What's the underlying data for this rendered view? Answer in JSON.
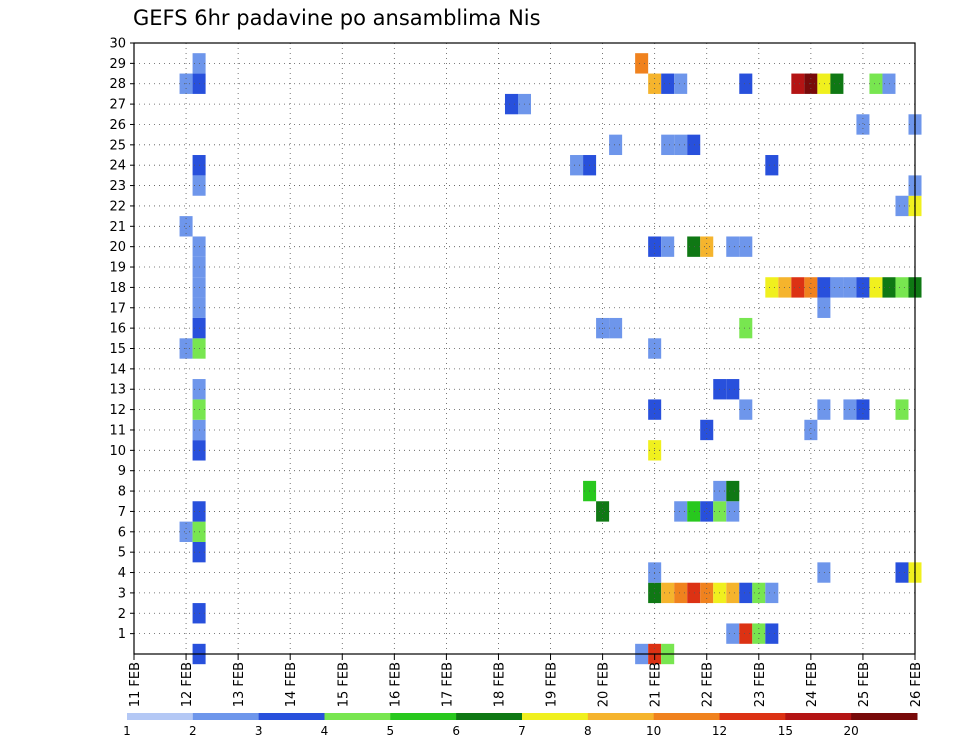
{
  "chart_data": {
    "type": "heatmap",
    "title": "GEFS 6hr padavine po ansamblima Nis",
    "x_ticks": [
      "11 FEB",
      "12 FEB",
      "13 FEB",
      "14 FEB",
      "15 FEB",
      "16 FEB",
      "17 FEB",
      "18 FEB",
      "19 FEB",
      "20 FEB",
      "21 FEB",
      "22 FEB",
      "23 FEB",
      "24 FEB",
      "25 FEB",
      "26 FEB"
    ],
    "y_ticks": [
      "1",
      "2",
      "3",
      "4",
      "5",
      "6",
      "7",
      "8",
      "9",
      "10",
      "11",
      "12",
      "13",
      "14",
      "15",
      "16",
      "17",
      "18",
      "19",
      "20",
      "21",
      "22",
      "23",
      "24",
      "25",
      "26",
      "27",
      "28",
      "29",
      "30"
    ],
    "xlim": [
      "11 FEB 00Z",
      "26 FEB 00Z"
    ],
    "ylim": [
      0,
      30
    ],
    "grid": true,
    "colorbar": {
      "labels": [
        "1",
        "2",
        "3",
        "4",
        "5",
        "6",
        "7",
        "8",
        "10",
        "12",
        "15",
        "20"
      ],
      "colors": [
        "#b4c8f5",
        "#6e96eb",
        "#2850dc",
        "#78e650",
        "#28c81e",
        "#0f7814",
        "#f0f01e",
        "#f5b42d",
        "#f0821e",
        "#dc3214",
        "#b41414",
        "#780a0a"
      ]
    },
    "points": [
      {
        "m": 0,
        "d": 12.25,
        "v": 2
      },
      {
        "m": 0,
        "d": 20.75,
        "v": 1
      },
      {
        "m": 0,
        "d": 21.0,
        "v": 9
      },
      {
        "m": 0,
        "d": 21.25,
        "v": 3
      },
      {
        "m": 1,
        "d": 22.5,
        "v": 1
      },
      {
        "m": 1,
        "d": 22.75,
        "v": 9
      },
      {
        "m": 1,
        "d": 23.0,
        "v": 3
      },
      {
        "m": 1,
        "d": 23.25,
        "v": 2
      },
      {
        "m": 2,
        "d": 12.25,
        "v": 2
      },
      {
        "m": 3,
        "d": 21.0,
        "v": 5
      },
      {
        "m": 3,
        "d": 21.25,
        "v": 7
      },
      {
        "m": 3,
        "d": 21.5,
        "v": 8
      },
      {
        "m": 3,
        "d": 21.75,
        "v": 9
      },
      {
        "m": 3,
        "d": 22.0,
        "v": 8
      },
      {
        "m": 3,
        "d": 22.25,
        "v": 6
      },
      {
        "m": 3,
        "d": 22.5,
        "v": 7
      },
      {
        "m": 3,
        "d": 22.75,
        "v": 2
      },
      {
        "m": 3,
        "d": 23.0,
        "v": 3
      },
      {
        "m": 3,
        "d": 23.25,
        "v": 1
      },
      {
        "m": 4,
        "d": 21.0,
        "v": 1
      },
      {
        "m": 4,
        "d": 24.25,
        "v": 1
      },
      {
        "m": 4,
        "d": 25.75,
        "v": 2
      },
      {
        "m": 4,
        "d": 26.0,
        "v": 6
      },
      {
        "m": 5,
        "d": 12.25,
        "v": 2
      },
      {
        "m": 6,
        "d": 12.0,
        "v": 1
      },
      {
        "m": 6,
        "d": 12.25,
        "v": 3
      },
      {
        "m": 7,
        "d": 12.25,
        "v": 2
      },
      {
        "m": 7,
        "d": 20.0,
        "v": 5
      },
      {
        "m": 7,
        "d": 21.5,
        "v": 1
      },
      {
        "m": 7,
        "d": 21.75,
        "v": 4
      },
      {
        "m": 7,
        "d": 22.0,
        "v": 2
      },
      {
        "m": 7,
        "d": 22.25,
        "v": 3
      },
      {
        "m": 7,
        "d": 22.5,
        "v": 1
      },
      {
        "m": 8,
        "d": 19.75,
        "v": 4
      },
      {
        "m": 8,
        "d": 22.25,
        "v": 1
      },
      {
        "m": 8,
        "d": 22.5,
        "v": 5
      },
      {
        "m": 10,
        "d": 12.25,
        "v": 2
      },
      {
        "m": 10,
        "d": 21.0,
        "v": 6
      },
      {
        "m": 11,
        "d": 12.25,
        "v": 1
      },
      {
        "m": 11,
        "d": 22.0,
        "v": 2
      },
      {
        "m": 11,
        "d": 24.0,
        "v": 1
      },
      {
        "m": 12,
        "d": 12.25,
        "v": 3
      },
      {
        "m": 12,
        "d": 21.0,
        "v": 2
      },
      {
        "m": 12,
        "d": 22.75,
        "v": 1
      },
      {
        "m": 12,
        "d": 24.25,
        "v": 1
      },
      {
        "m": 12,
        "d": 24.75,
        "v": 1
      },
      {
        "m": 12,
        "d": 25.0,
        "v": 2
      },
      {
        "m": 12,
        "d": 25.75,
        "v": 3
      },
      {
        "m": 13,
        "d": 12.25,
        "v": 1
      },
      {
        "m": 13,
        "d": 22.25,
        "v": 2
      },
      {
        "m": 13,
        "d": 22.5,
        "v": 2
      },
      {
        "m": 15,
        "d": 12.0,
        "v": 1
      },
      {
        "m": 15,
        "d": 12.25,
        "v": 3
      },
      {
        "m": 15,
        "d": 21.0,
        "v": 1
      },
      {
        "m": 16,
        "d": 12.25,
        "v": 2
      },
      {
        "m": 16,
        "d": 20.0,
        "v": 1
      },
      {
        "m": 16,
        "d": 20.25,
        "v": 1
      },
      {
        "m": 16,
        "d": 22.75,
        "v": 3
      },
      {
        "m": 17,
        "d": 12.25,
        "v": 1
      },
      {
        "m": 17,
        "d": 24.25,
        "v": 1
      },
      {
        "m": 18,
        "d": 12.25,
        "v": 1
      },
      {
        "m": 18,
        "d": 23.25,
        "v": 6
      },
      {
        "m": 18,
        "d": 23.5,
        "v": 7
      },
      {
        "m": 18,
        "d": 23.75,
        "v": 9
      },
      {
        "m": 18,
        "d": 24.0,
        "v": 8
      },
      {
        "m": 18,
        "d": 24.25,
        "v": 2
      },
      {
        "m": 18,
        "d": 24.5,
        "v": 1
      },
      {
        "m": 18,
        "d": 24.75,
        "v": 1
      },
      {
        "m": 18,
        "d": 25.0,
        "v": 2
      },
      {
        "m": 18,
        "d": 25.25,
        "v": 6
      },
      {
        "m": 18,
        "d": 25.5,
        "v": 5
      },
      {
        "m": 18,
        "d": 25.75,
        "v": 3
      },
      {
        "m": 18,
        "d": 26.0,
        "v": 5
      },
      {
        "m": 19,
        "d": 12.25,
        "v": 1
      },
      {
        "m": 20,
        "d": 12.25,
        "v": 1
      },
      {
        "m": 20,
        "d": 21.0,
        "v": 2
      },
      {
        "m": 20,
        "d": 21.25,
        "v": 1
      },
      {
        "m": 20,
        "d": 21.75,
        "v": 5
      },
      {
        "m": 20,
        "d": 22.0,
        "v": 7
      },
      {
        "m": 20,
        "d": 22.5,
        "v": 1
      },
      {
        "m": 20,
        "d": 22.75,
        "v": 1
      },
      {
        "m": 21,
        "d": 12.0,
        "v": 1
      },
      {
        "m": 22,
        "d": 25.75,
        "v": 1
      },
      {
        "m": 22,
        "d": 26.0,
        "v": 6
      },
      {
        "m": 23,
        "d": 12.25,
        "v": 1
      },
      {
        "m": 23,
        "d": 26.0,
        "v": 1
      },
      {
        "m": 24,
        "d": 12.25,
        "v": 2
      },
      {
        "m": 24,
        "d": 19.5,
        "v": 1
      },
      {
        "m": 24,
        "d": 19.75,
        "v": 2
      },
      {
        "m": 24,
        "d": 23.25,
        "v": 2
      },
      {
        "m": 25,
        "d": 20.25,
        "v": 1
      },
      {
        "m": 25,
        "d": 21.25,
        "v": 1
      },
      {
        "m": 25,
        "d": 21.5,
        "v": 1
      },
      {
        "m": 25,
        "d": 21.75,
        "v": 2
      },
      {
        "m": 26,
        "d": 25.0,
        "v": 1
      },
      {
        "m": 26,
        "d": 26.0,
        "v": 1
      },
      {
        "m": 27,
        "d": 18.25,
        "v": 2
      },
      {
        "m": 27,
        "d": 18.5,
        "v": 1
      },
      {
        "m": 28,
        "d": 12.0,
        "v": 1
      },
      {
        "m": 28,
        "d": 12.25,
        "v": 2
      },
      {
        "m": 28,
        "d": 21.0,
        "v": 7
      },
      {
        "m": 28,
        "d": 21.25,
        "v": 2
      },
      {
        "m": 28,
        "d": 21.5,
        "v": 1
      },
      {
        "m": 28,
        "d": 22.75,
        "v": 2
      },
      {
        "m": 28,
        "d": 23.75,
        "v": 10
      },
      {
        "m": 28,
        "d": 24.0,
        "v": 11
      },
      {
        "m": 28,
        "d": 24.25,
        "v": 6
      },
      {
        "m": 28,
        "d": 24.5,
        "v": 5
      },
      {
        "m": 28,
        "d": 25.25,
        "v": 3
      },
      {
        "m": 28,
        "d": 25.5,
        "v": 1
      },
      {
        "m": 29,
        "d": 12.25,
        "v": 1
      },
      {
        "m": 29,
        "d": 20.75,
        "v": 8
      }
    ]
  }
}
